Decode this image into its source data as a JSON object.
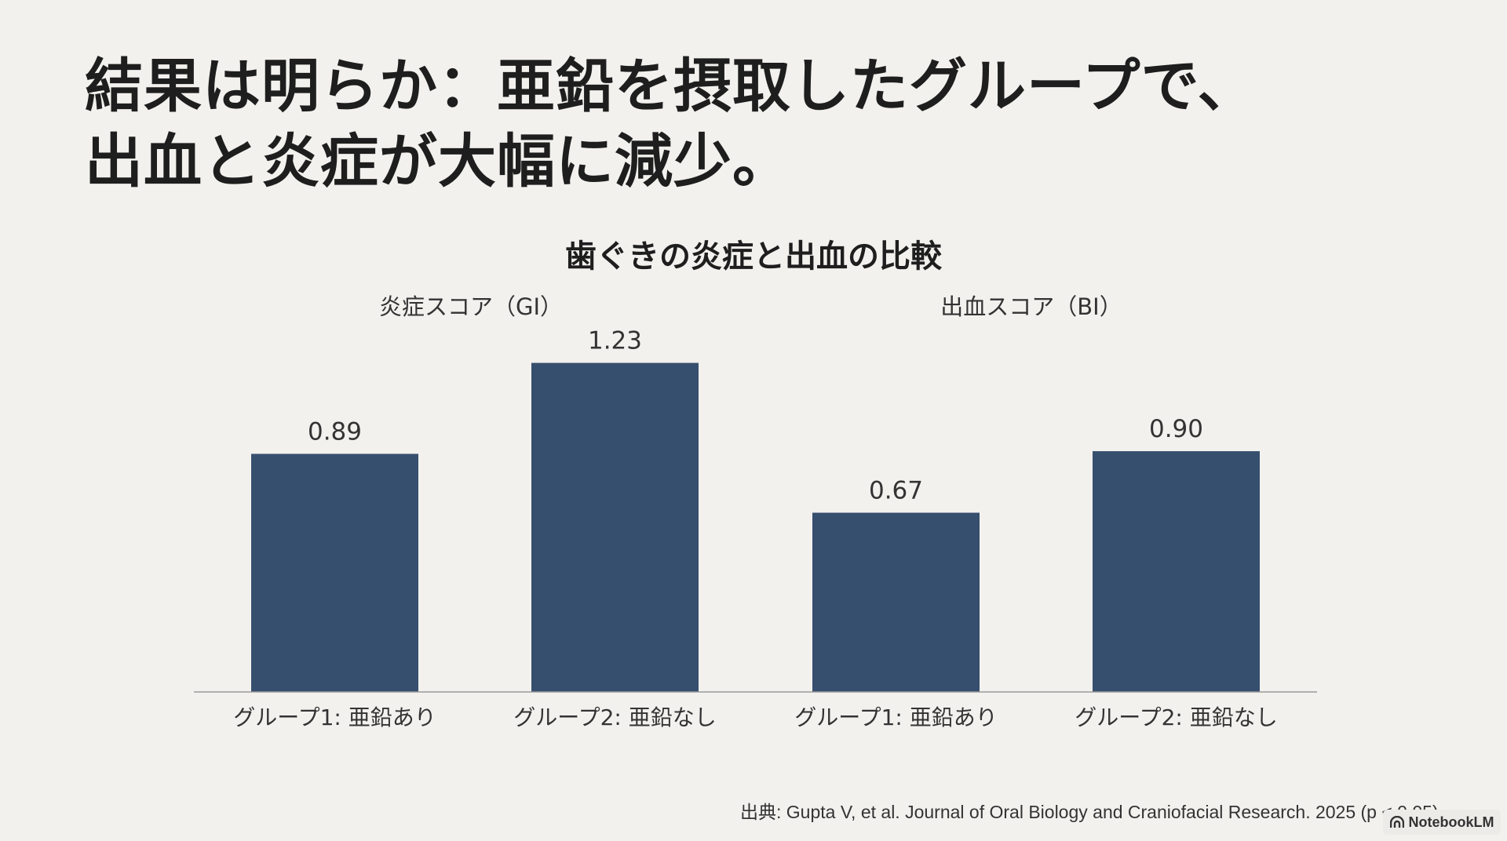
{
  "headline": {
    "line1": "結果は明らか：亜鉛を摂取したグループで、",
    "line2": "出血と炎症が大幅に減少。"
  },
  "chart_data": {
    "type": "bar",
    "title": "歯ぐきの炎症と出血の比較",
    "panels": [
      {
        "title": "炎症スコア（GI）",
        "categories": [
          "グループ1: 亜鉛あり",
          "グループ2: 亜鉛なし"
        ],
        "values": [
          0.89,
          1.23
        ],
        "labels": [
          "0.89",
          "1.23"
        ]
      },
      {
        "title": "出血スコア（BI）",
        "categories": [
          "グループ1: 亜鉛あり",
          "グループ2: 亜鉛なし"
        ],
        "values": [
          0.67,
          0.9
        ],
        "labels": [
          "0.67",
          "0.90"
        ]
      }
    ],
    "ylim": [
      0,
      1.23
    ],
    "grid": false,
    "bar_color": "#374f6e"
  },
  "source": "出典: Gupta V, et al. Journal of Oral Biology and Craniofacial Research. 2025 (p < 0.05)",
  "badge": {
    "label": "NotebookLM",
    "icon": "notebooklm-logo-icon"
  }
}
